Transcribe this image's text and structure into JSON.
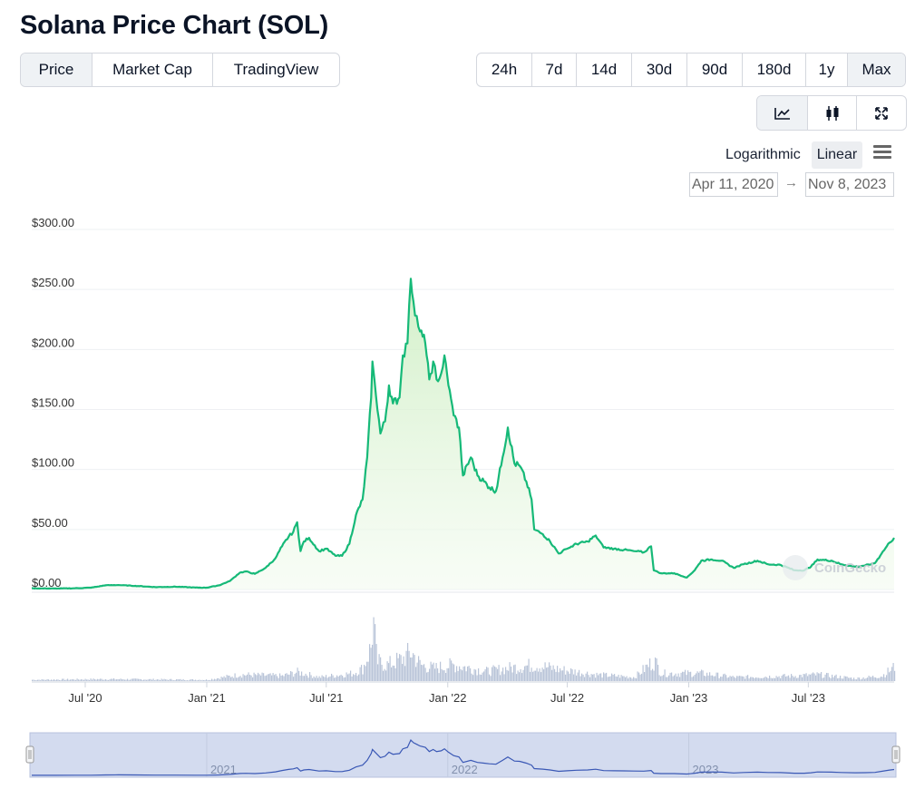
{
  "page": {
    "title": "Solana Price Chart (SOL)"
  },
  "tabs": [
    {
      "label": "Price",
      "active": true
    },
    {
      "label": "Market Cap",
      "active": false
    },
    {
      "label": "TradingView",
      "active": false
    }
  ],
  "ranges": [
    {
      "label": "24h",
      "active": false
    },
    {
      "label": "7d",
      "active": false
    },
    {
      "label": "14d",
      "active": false
    },
    {
      "label": "30d",
      "active": false
    },
    {
      "label": "90d",
      "active": false
    },
    {
      "label": "180d",
      "active": false
    },
    {
      "label": "1y",
      "active": false
    },
    {
      "label": "Max",
      "active": true
    }
  ],
  "view_toggles": [
    {
      "icon": "line-chart-icon",
      "active": true
    },
    {
      "icon": "candlestick-icon",
      "active": false
    },
    {
      "icon": "expand-icon",
      "active": false
    }
  ],
  "scale": {
    "logarithmic_label": "Logarithmic",
    "linear_label": "Linear",
    "active": "Linear"
  },
  "date_range": {
    "from": "Apr 11, 2020",
    "arrow": "→",
    "to": "Nov 8, 2023"
  },
  "watermark": "CoinGecko",
  "colors": {
    "price_line": "#16b978",
    "area_fill": "#dff3d8",
    "volume": "#b9c4d8",
    "navigator_bg": "#d3dbef",
    "navigator_line": "#3a58b5"
  },
  "chart_data": {
    "type": "line",
    "title": "",
    "xlabel": "",
    "ylabel": "",
    "ylim": [
      0,
      300
    ],
    "y_ticks": [
      "$300.00",
      "$250.00",
      "$200.00",
      "$150.00",
      "$100.00",
      "$50.00",
      "$0.00"
    ],
    "y_tick_values": [
      300,
      250,
      200,
      150,
      100,
      50,
      0
    ],
    "x_ticks": [
      "Jul '20",
      "Jan '21",
      "Jul '21",
      "Jan '22",
      "Jul '22",
      "Jan '23",
      "Jul '23"
    ],
    "x_tick_dates": [
      "2020-07-01",
      "2021-01-01",
      "2021-07-01",
      "2022-01-01",
      "2022-07-01",
      "2023-01-01",
      "2023-07-01"
    ],
    "navigator_labels": [
      "2021",
      "2022",
      "2023"
    ],
    "navigator_label_dates": [
      "2021-01-01",
      "2022-01-01",
      "2023-01-01"
    ],
    "x_range": [
      "2020-04-11",
      "2023-11-08"
    ],
    "series": [
      {
        "values": [
          [
            "2020-04-11",
            0.95
          ],
          [
            "2020-05-15",
            0.8
          ],
          [
            "2020-06-15",
            1.0
          ],
          [
            "2020-07-10",
            1.5
          ],
          [
            "2020-08-01",
            3.5
          ],
          [
            "2020-08-20",
            3.7
          ],
          [
            "2020-09-15",
            3.0
          ],
          [
            "2020-10-15",
            2.0
          ],
          [
            "2020-11-15",
            2.3
          ],
          [
            "2020-12-15",
            1.6
          ],
          [
            "2021-01-01",
            1.5
          ],
          [
            "2021-01-20",
            3.5
          ],
          [
            "2021-02-05",
            7.0
          ],
          [
            "2021-02-20",
            14.0
          ],
          [
            "2021-03-01",
            15.0
          ],
          [
            "2021-03-15",
            13.0
          ],
          [
            "2021-03-31",
            18.0
          ],
          [
            "2021-04-15",
            26.0
          ],
          [
            "2021-04-25",
            36.0
          ],
          [
            "2021-05-05",
            44.0
          ],
          [
            "2021-05-12",
            48.0
          ],
          [
            "2021-05-18",
            56.0
          ],
          [
            "2021-05-23",
            32.0
          ],
          [
            "2021-05-28",
            40.0
          ],
          [
            "2021-06-05",
            43.0
          ],
          [
            "2021-06-20",
            32.0
          ],
          [
            "2021-07-01",
            34.0
          ],
          [
            "2021-07-15",
            28.0
          ],
          [
            "2021-07-25",
            28.0
          ],
          [
            "2021-08-05",
            38.0
          ],
          [
            "2021-08-15",
            62.0
          ],
          [
            "2021-08-25",
            75.0
          ],
          [
            "2021-09-01",
            110.0
          ],
          [
            "2021-09-07",
            160.0
          ],
          [
            "2021-09-09",
            190.0
          ],
          [
            "2021-09-12",
            175.0
          ],
          [
            "2021-09-21",
            130.0
          ],
          [
            "2021-09-28",
            140.0
          ],
          [
            "2021-10-04",
            170.0
          ],
          [
            "2021-10-10",
            155.0
          ],
          [
            "2021-10-20",
            160.0
          ],
          [
            "2021-10-25",
            195.0
          ],
          [
            "2021-11-01",
            205.0
          ],
          [
            "2021-11-06",
            259.0
          ],
          [
            "2021-11-10",
            240.0
          ],
          [
            "2021-11-15",
            228.0
          ],
          [
            "2021-11-20",
            215.0
          ],
          [
            "2021-11-28",
            205.0
          ],
          [
            "2021-12-04",
            175.0
          ],
          [
            "2021-12-10",
            190.0
          ],
          [
            "2021-12-15",
            175.0
          ],
          [
            "2021-12-22",
            180.0
          ],
          [
            "2021-12-27",
            195.0
          ],
          [
            "2022-01-02",
            170.0
          ],
          [
            "2022-01-10",
            145.0
          ],
          [
            "2022-01-18",
            135.0
          ],
          [
            "2022-01-24",
            95.0
          ],
          [
            "2022-02-05",
            110.0
          ],
          [
            "2022-02-15",
            95.0
          ],
          [
            "2022-02-25",
            90.0
          ],
          [
            "2022-03-05",
            85.0
          ],
          [
            "2022-03-15",
            82.0
          ],
          [
            "2022-03-25",
            110.0
          ],
          [
            "2022-04-02",
            135.0
          ],
          [
            "2022-04-12",
            105.0
          ],
          [
            "2022-04-20",
            103.0
          ],
          [
            "2022-04-30",
            90.0
          ],
          [
            "2022-05-08",
            75.0
          ],
          [
            "2022-05-12",
            50.0
          ],
          [
            "2022-05-25",
            46.0
          ],
          [
            "2022-06-05",
            40.0
          ],
          [
            "2022-06-18",
            30.0
          ],
          [
            "2022-07-01",
            34.0
          ],
          [
            "2022-07-15",
            38.0
          ],
          [
            "2022-08-01",
            40.0
          ],
          [
            "2022-08-13",
            45.0
          ],
          [
            "2022-08-25",
            35.0
          ],
          [
            "2022-09-10",
            34.0
          ],
          [
            "2022-09-25",
            33.0
          ],
          [
            "2022-10-10",
            32.0
          ],
          [
            "2022-10-25",
            31.0
          ],
          [
            "2022-11-05",
            36.0
          ],
          [
            "2022-11-09",
            16.0
          ],
          [
            "2022-11-20",
            13.5
          ],
          [
            "2022-12-10",
            13.5
          ],
          [
            "2022-12-29",
            10.0
          ],
          [
            "2023-01-10",
            16.0
          ],
          [
            "2023-01-20",
            24.0
          ],
          [
            "2023-02-05",
            25.0
          ],
          [
            "2023-02-20",
            24.0
          ],
          [
            "2023-03-10",
            18.0
          ],
          [
            "2023-03-25",
            21.0
          ],
          [
            "2023-04-15",
            24.0
          ],
          [
            "2023-05-01",
            21.0
          ],
          [
            "2023-05-20",
            20.5
          ],
          [
            "2023-06-10",
            16.0
          ],
          [
            "2023-06-25",
            16.0
          ],
          [
            "2023-07-05",
            19.0
          ],
          [
            "2023-07-15",
            25.0
          ],
          [
            "2023-08-05",
            24.0
          ],
          [
            "2023-08-20",
            21.0
          ],
          [
            "2023-09-10",
            19.0
          ],
          [
            "2023-09-25",
            20.0
          ],
          [
            "2023-10-10",
            22.0
          ],
          [
            "2023-10-20",
            30.0
          ],
          [
            "2023-11-01",
            39.0
          ],
          [
            "2023-11-08",
            43.0
          ]
        ]
      }
    ],
    "volume": {
      "note_unit": "relative",
      "values": [
        [
          "2020-04-11",
          0.02
        ],
        [
          "2020-08-01",
          0.03
        ],
        [
          "2021-01-01",
          0.02
        ],
        [
          "2021-02-20",
          0.1
        ],
        [
          "2021-04-25",
          0.08
        ],
        [
          "2021-05-18",
          0.14
        ],
        [
          "2021-06-20",
          0.06
        ],
        [
          "2021-08-10",
          0.12
        ],
        [
          "2021-08-25",
          0.2
        ],
        [
          "2021-09-07",
          0.55
        ],
        [
          "2021-09-09",
          1.0
        ],
        [
          "2021-09-15",
          0.3
        ],
        [
          "2021-10-01",
          0.25
        ],
        [
          "2021-10-25",
          0.35
        ],
        [
          "2021-11-06",
          0.45
        ],
        [
          "2021-11-20",
          0.25
        ],
        [
          "2021-12-10",
          0.2
        ],
        [
          "2022-01-10",
          0.25
        ],
        [
          "2022-01-24",
          0.22
        ],
        [
          "2022-03-01",
          0.15
        ],
        [
          "2022-04-02",
          0.2
        ],
        [
          "2022-05-12",
          0.25
        ],
        [
          "2022-06-18",
          0.18
        ],
        [
          "2022-08-13",
          0.1
        ],
        [
          "2022-10-10",
          0.06
        ],
        [
          "2022-11-09",
          0.32
        ],
        [
          "2022-11-20",
          0.12
        ],
        [
          "2023-01-20",
          0.12
        ],
        [
          "2023-03-10",
          0.06
        ],
        [
          "2023-06-10",
          0.08
        ],
        [
          "2023-07-15",
          0.1
        ],
        [
          "2023-09-10",
          0.04
        ],
        [
          "2023-10-20",
          0.08
        ],
        [
          "2023-11-08",
          0.22
        ]
      ]
    },
    "grid": true,
    "legend": "none"
  }
}
